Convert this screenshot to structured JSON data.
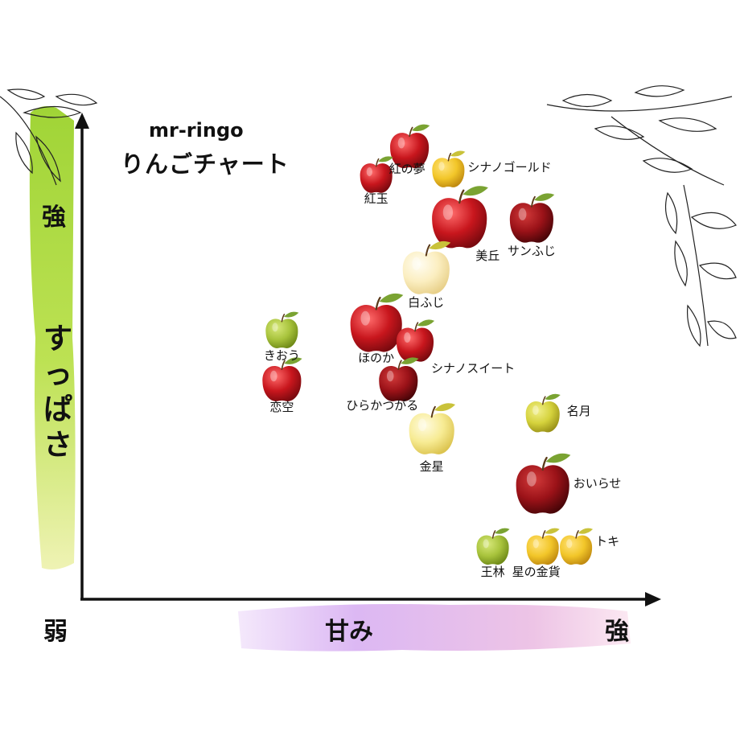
{
  "title": {
    "line1": "mr-ringo",
    "line2": "りんごチャート"
  },
  "axes": {
    "y_label": "すっぱさ",
    "x_label": "甘み",
    "y_high": "強",
    "x_high": "強",
    "origin_low": "弱"
  },
  "colors": {
    "axis": "#111111",
    "y_brush": "#9bd22c",
    "x_brush": "#d9b0f0",
    "apple_red": "#c8161d",
    "apple_dark_red": "#7a0f14",
    "apple_yellow": "#f2c629",
    "apple_cream": "#fbeec0",
    "apple_green": "#a8c33c",
    "leaf": "#7aa332"
  },
  "chart_data": {
    "type": "scatter",
    "title": "りんごチャート",
    "xlabel": "甘み",
    "ylabel": "すっぱさ",
    "points": [
      {
        "name": "紅の夢",
        "sweetness": 5.9,
        "sourness": 8.1,
        "color": "red",
        "icon": "apple-red-icon"
      },
      {
        "name": "シナノゴールド",
        "sweetness": 6.6,
        "sourness": 7.7,
        "color": "yellow",
        "icon": "apple-yellow-icon"
      },
      {
        "name": "紅玉",
        "sweetness": 5.3,
        "sourness": 7.6,
        "color": "red",
        "icon": "apple-red-icon"
      },
      {
        "name": "美丘",
        "sweetness": 6.8,
        "sourness": 6.8,
        "color": "red",
        "icon": "apple-red-icon"
      },
      {
        "name": "サンふじ",
        "sweetness": 8.1,
        "sourness": 6.8,
        "color": "dark-red",
        "icon": "apple-red-icon"
      },
      {
        "name": "白ふじ",
        "sweetness": 6.2,
        "sourness": 5.9,
        "color": "cream",
        "icon": "apple-cream-icon"
      },
      {
        "name": "きおう",
        "sweetness": 3.6,
        "sourness": 4.8,
        "color": "green",
        "icon": "apple-green-icon"
      },
      {
        "name": "ほのか",
        "sweetness": 5.3,
        "sourness": 4.9,
        "color": "red",
        "icon": "apple-red-icon"
      },
      {
        "name": "シナノスイート",
        "sweetness": 6.0,
        "sourness": 4.6,
        "color": "red",
        "icon": "apple-red-icon"
      },
      {
        "name": "恋空",
        "sweetness": 3.6,
        "sourness": 3.9,
        "color": "red",
        "icon": "apple-red-icon"
      },
      {
        "name": "ひらかつがる",
        "sweetness": 5.7,
        "sourness": 3.9,
        "color": "dark-red",
        "icon": "apple-red-icon"
      },
      {
        "name": "金星",
        "sweetness": 6.3,
        "sourness": 3.0,
        "color": "cream-yellow",
        "icon": "apple-cream-icon"
      },
      {
        "name": "名月",
        "sweetness": 8.3,
        "sourness": 3.3,
        "color": "yellow-green",
        "icon": "apple-yellow-icon"
      },
      {
        "name": "おいらせ",
        "sweetness": 8.3,
        "sourness": 2.0,
        "color": "dark-red",
        "icon": "apple-red-icon"
      },
      {
        "name": "王林",
        "sweetness": 7.4,
        "sourness": 0.9,
        "color": "green",
        "icon": "apple-green-icon"
      },
      {
        "name": "星の金貨",
        "sweetness": 8.3,
        "sourness": 0.9,
        "color": "yellow",
        "icon": "apple-yellow-icon"
      },
      {
        "name": "トキ",
        "sweetness": 8.9,
        "sourness": 0.9,
        "color": "yellow",
        "icon": "apple-yellow-icon"
      }
    ]
  }
}
